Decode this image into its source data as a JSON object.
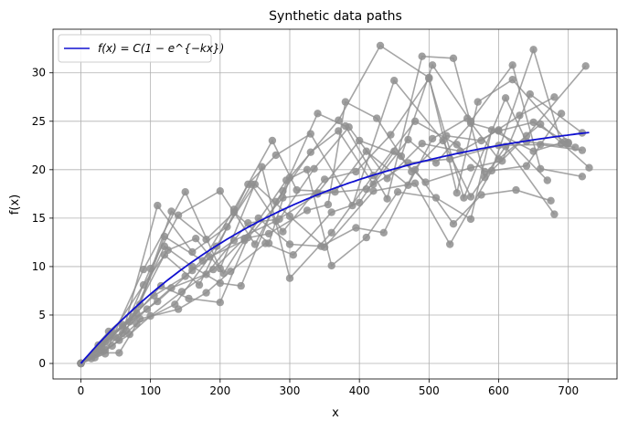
{
  "chart_data": {
    "type": "line",
    "title": "Synthetic data paths",
    "xlabel": "x",
    "ylabel": "f(x)",
    "xlim": [
      -40,
      770
    ],
    "ylim": [
      -1.6,
      34.5
    ],
    "xticks": [
      0,
      100,
      200,
      300,
      400,
      500,
      600,
      700
    ],
    "yticks": [
      0,
      5,
      10,
      15,
      20,
      25,
      30
    ],
    "grid": true,
    "legend_position": "top-left",
    "fit_curve": {
      "label": "f(x) = C(1 − e^{−kx})",
      "C": 26.5,
      "k": 0.00315,
      "x_range": [
        0,
        730
      ],
      "color": "#1010d0"
    },
    "path_color": "#8f8f8f",
    "paths": [
      [
        [
          0,
          0
        ],
        [
          25,
          1.5
        ],
        [
          60,
          3.8
        ],
        [
          110,
          6.4
        ],
        [
          160,
          9.6
        ],
        [
          220,
          12.7
        ],
        [
          280,
          14.7
        ],
        [
          340,
          17.5
        ],
        [
          410,
          18.0
        ],
        [
          470,
          20.7
        ],
        [
          530,
          21.1
        ],
        [
          600,
          22.5
        ],
        [
          660,
          22.6
        ],
        [
          720,
          22.0
        ]
      ],
      [
        [
          0,
          0
        ],
        [
          35,
          1.0
        ],
        [
          90,
          9.7
        ],
        [
          150,
          17.7
        ],
        [
          200,
          9.8
        ],
        [
          260,
          20.3
        ],
        [
          300,
          8.8
        ],
        [
          360,
          13.5
        ],
        [
          420,
          19.4
        ],
        [
          480,
          25.0
        ],
        [
          540,
          22.6
        ],
        [
          580,
          19.8
        ],
        [
          640,
          20.4
        ],
        [
          690,
          25.8
        ]
      ],
      [
        [
          0,
          0
        ],
        [
          30,
          2.0
        ],
        [
          70,
          4.3
        ],
        [
          120,
          11.2
        ],
        [
          170,
          8.1
        ],
        [
          240,
          18.5
        ],
        [
          280,
          21.5
        ],
        [
          330,
          23.7
        ],
        [
          390,
          16.3
        ],
        [
          450,
          29.2
        ],
        [
          520,
          23.0
        ],
        [
          560,
          17.2
        ],
        [
          610,
          22.4
        ],
        [
          680,
          15.4
        ]
      ],
      [
        [
          0,
          0
        ],
        [
          40,
          2.7
        ],
        [
          80,
          5.2
        ],
        [
          130,
          15.7
        ],
        [
          180,
          12.8
        ],
        [
          220,
          15.6
        ],
        [
          270,
          12.4
        ],
        [
          300,
          19.2
        ],
        [
          370,
          25.1
        ],
        [
          430,
          32.8
        ],
        [
          500,
          29.5
        ],
        [
          540,
          17.6
        ],
        [
          570,
          27.0
        ],
        [
          620,
          29.3
        ],
        [
          700,
          22.8
        ]
      ],
      [
        [
          0,
          0
        ],
        [
          20,
          0.6
        ],
        [
          55,
          2.4
        ],
        [
          100,
          9.8
        ],
        [
          140,
          15.3
        ],
        [
          200,
          17.8
        ],
        [
          250,
          12.3
        ],
        [
          290,
          17.8
        ],
        [
          340,
          25.8
        ],
        [
          380,
          24.5
        ],
        [
          440,
          17.0
        ],
        [
          490,
          31.7
        ],
        [
          535,
          31.5
        ],
        [
          580,
          19.2
        ],
        [
          640,
          23.5
        ],
        [
          725,
          30.7
        ]
      ],
      [
        [
          0,
          0
        ],
        [
          30,
          1.3
        ],
        [
          60,
          3.1
        ],
        [
          110,
          16.3
        ],
        [
          160,
          11.5
        ],
        [
          210,
          14.1
        ],
        [
          250,
          18.5
        ],
        [
          300,
          15.2
        ],
        [
          350,
          12.0
        ],
        [
          420,
          17.8
        ],
        [
          480,
          18.6
        ],
        [
          530,
          12.3
        ],
        [
          590,
          19.9
        ],
        [
          650,
          32.4
        ],
        [
          690,
          22.7
        ]
      ],
      [
        [
          0,
          0
        ],
        [
          35,
          2.2
        ],
        [
          75,
          4.8
        ],
        [
          115,
          8.0
        ],
        [
          155,
          6.7
        ],
        [
          200,
          6.3
        ],
        [
          240,
          13.0
        ],
        [
          290,
          17.1
        ],
        [
          340,
          17.6
        ],
        [
          400,
          23.0
        ],
        [
          460,
          21.4
        ],
        [
          505,
          30.8
        ],
        [
          560,
          25.0
        ],
        [
          620,
          30.8
        ],
        [
          660,
          20.1
        ],
        [
          720,
          19.3
        ]
      ],
      [
        [
          0,
          0
        ],
        [
          25,
          1.9
        ],
        [
          65,
          3.4
        ],
        [
          120,
          12.1
        ],
        [
          160,
          10.0
        ],
        [
          200,
          8.3
        ],
        [
          230,
          8.0
        ],
        [
          280,
          16.7
        ],
        [
          330,
          21.8
        ],
        [
          370,
          24.0
        ],
        [
          420,
          18.5
        ],
        [
          470,
          23.1
        ],
        [
          510,
          20.7
        ],
        [
          560,
          24.8
        ],
        [
          600,
          24.0
        ],
        [
          650,
          24.9
        ],
        [
          700,
          22.7
        ]
      ],
      [
        [
          0,
          0
        ],
        [
          40,
          3.3
        ],
        [
          85,
          6.1
        ],
        [
          120,
          13.1
        ],
        [
          175,
          10.6
        ],
        [
          220,
          15.9
        ],
        [
          275,
          23.0
        ],
        [
          310,
          17.9
        ],
        [
          365,
          17.7
        ],
        [
          410,
          21.9
        ],
        [
          470,
          18.4
        ],
        [
          505,
          23.2
        ],
        [
          555,
          25.3
        ],
        [
          600,
          21.1
        ],
        [
          660,
          24.7
        ],
        [
          730,
          20.2
        ]
      ],
      [
        [
          0,
          0
        ],
        [
          20,
          1.2
        ],
        [
          50,
          2.7
        ],
        [
          95,
          5.6
        ],
        [
          130,
          7.8
        ],
        [
          180,
          9.2
        ],
        [
          240,
          14.5
        ],
        [
          285,
          14.9
        ],
        [
          335,
          20.1
        ],
        [
          385,
          24.4
        ],
        [
          440,
          19.1
        ],
        [
          490,
          22.7
        ],
        [
          545,
          21.9
        ],
        [
          600,
          24.1
        ],
        [
          670,
          18.9
        ]
      ],
      [
        [
          0,
          0
        ],
        [
          30,
          1.7
        ],
        [
          60,
          4.0
        ],
        [
          105,
          7.0
        ],
        [
          150,
          9.0
        ],
        [
          195,
          12.1
        ],
        [
          245,
          18.5
        ],
        [
          290,
          13.6
        ],
        [
          350,
          19.0
        ],
        [
          395,
          19.8
        ],
        [
          445,
          23.6
        ],
        [
          500,
          29.4
        ],
        [
          550,
          17.1
        ],
        [
          610,
          27.4
        ],
        [
          640,
          22.9
        ],
        [
          710,
          22.3
        ]
      ],
      [
        [
          0,
          0
        ],
        [
          45,
          3.2
        ],
        [
          90,
          8.1
        ],
        [
          125,
          11.7
        ],
        [
          165,
          12.9
        ],
        [
          205,
          9.3
        ],
        [
          255,
          15.0
        ],
        [
          300,
          12.3
        ],
        [
          345,
          12.1
        ],
        [
          395,
          14.0
        ],
        [
          435,
          13.5
        ],
        [
          480,
          20.0
        ],
        [
          535,
          14.4
        ],
        [
          575,
          17.4
        ],
        [
          625,
          17.9
        ],
        [
          675,
          16.8
        ]
      ],
      [
        [
          0,
          0
        ],
        [
          15,
          0.5
        ],
        [
          45,
          1.8
        ],
        [
          80,
          4.1
        ],
        [
          135,
          6.1
        ],
        [
          185,
          11.0
        ],
        [
          235,
          12.7
        ],
        [
          295,
          18.9
        ],
        [
          325,
          20.0
        ],
        [
          360,
          10.1
        ],
        [
          410,
          13.0
        ],
        [
          455,
          17.7
        ],
        [
          510,
          17.1
        ],
        [
          560,
          14.9
        ],
        [
          590,
          24.1
        ],
        [
          650,
          21.9
        ],
        [
          695,
          22.9
        ]
      ],
      [
        [
          0,
          0
        ],
        [
          35,
          1.4
        ],
        [
          70,
          3.0
        ],
        [
          100,
          4.9
        ],
        [
          145,
          7.4
        ],
        [
          190,
          9.7
        ],
        [
          235,
          12.9
        ],
        [
          270,
          13.4
        ],
        [
          325,
          15.8
        ],
        [
          355,
          16.4
        ],
        [
          380,
          27.0
        ],
        [
          425,
          25.3
        ],
        [
          475,
          19.8
        ],
        [
          525,
          23.5
        ],
        [
          575,
          23.0
        ],
        [
          630,
          25.6
        ],
        [
          680,
          27.5
        ]
      ],
      [
        [
          0,
          0
        ],
        [
          25,
          1.1
        ],
        [
          55,
          1.1
        ],
        [
          85,
          4.6
        ],
        [
          140,
          5.6
        ],
        [
          180,
          7.3
        ],
        [
          215,
          9.5
        ],
        [
          265,
          12.4
        ],
        [
          305,
          11.2
        ],
        [
          360,
          15.6
        ],
        [
          400,
          16.6
        ],
        [
          450,
          21.9
        ],
        [
          495,
          18.7
        ],
        [
          560,
          20.2
        ],
        [
          605,
          20.9
        ],
        [
          645,
          27.8
        ],
        [
          720,
          23.8
        ]
      ]
    ]
  }
}
